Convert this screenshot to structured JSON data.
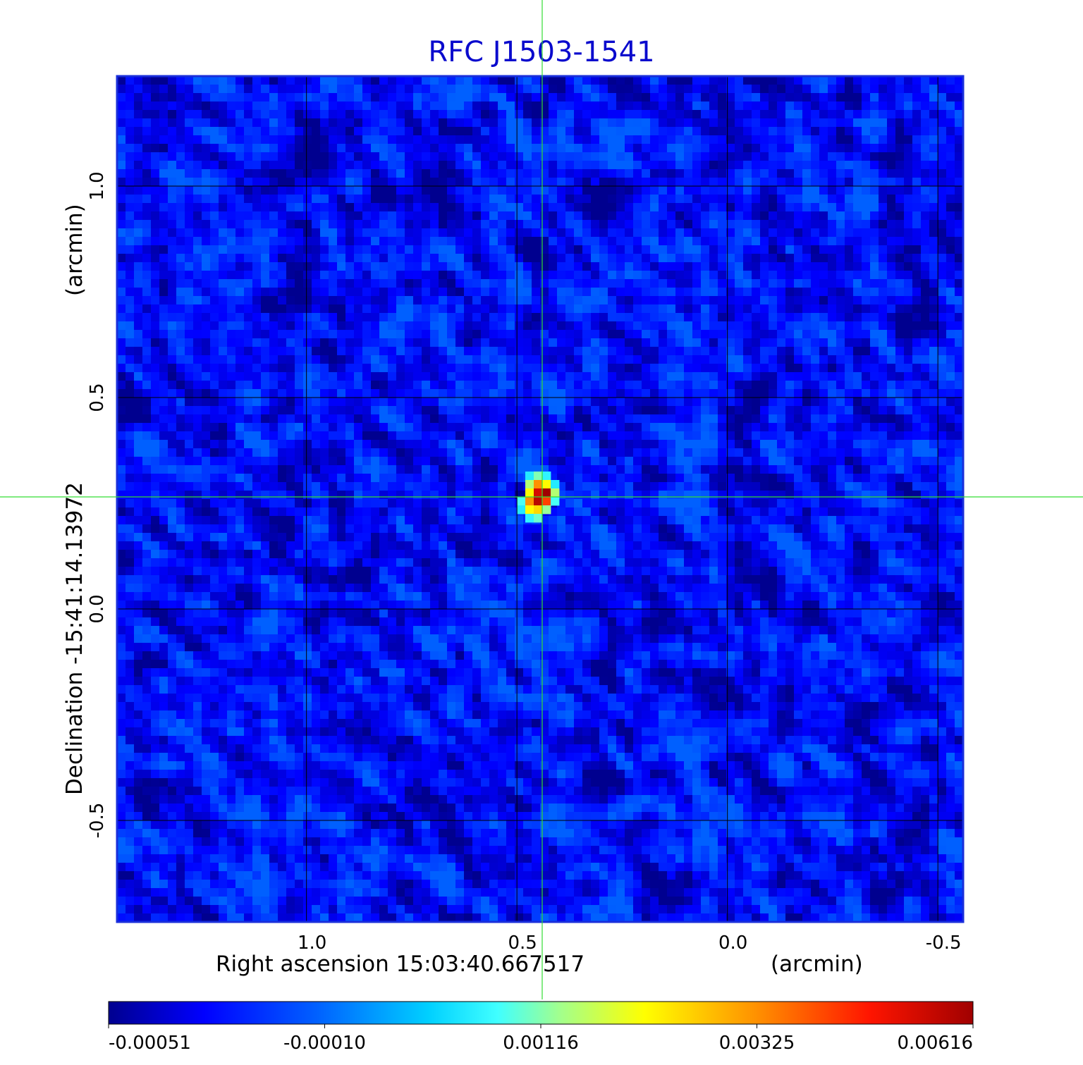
{
  "chart_data": {
    "type": "heatmap",
    "title": "RFC J1503-1541",
    "xlabel": "Right ascension  15:03:40.667517",
    "xunit": "(arcmin)",
    "ylabel": "Declination  -15:41:14.13972",
    "yunit": "(arcmin)",
    "x_ticks": [
      "1.0",
      "0.5",
      "0.0",
      "-0.5"
    ],
    "y_ticks": [
      "1.0",
      "0.5",
      "0.0",
      "-0.5"
    ],
    "xlim": [
      1.45,
      -0.56
    ],
    "ylim": [
      -0.74,
      1.26
    ],
    "grid": true,
    "x_axis_direction": "decreasing to the right",
    "crosshair": {
      "x": 0.44,
      "y": 0.265,
      "color": "#33dd33"
    },
    "source_peak": {
      "x": 0.44,
      "y": 0.265,
      "value": 0.00616
    },
    "colorbar": {
      "ticks": [
        "-0.00051",
        "-0.00010",
        "0.00116",
        "0.00325",
        "0.00616"
      ],
      "colormap": "jet",
      "range": [
        -0.00051,
        0.00616
      ]
    },
    "background_level_range": [
      -0.00051,
      0.00116
    ],
    "frame_color": "#1a2fdb"
  }
}
